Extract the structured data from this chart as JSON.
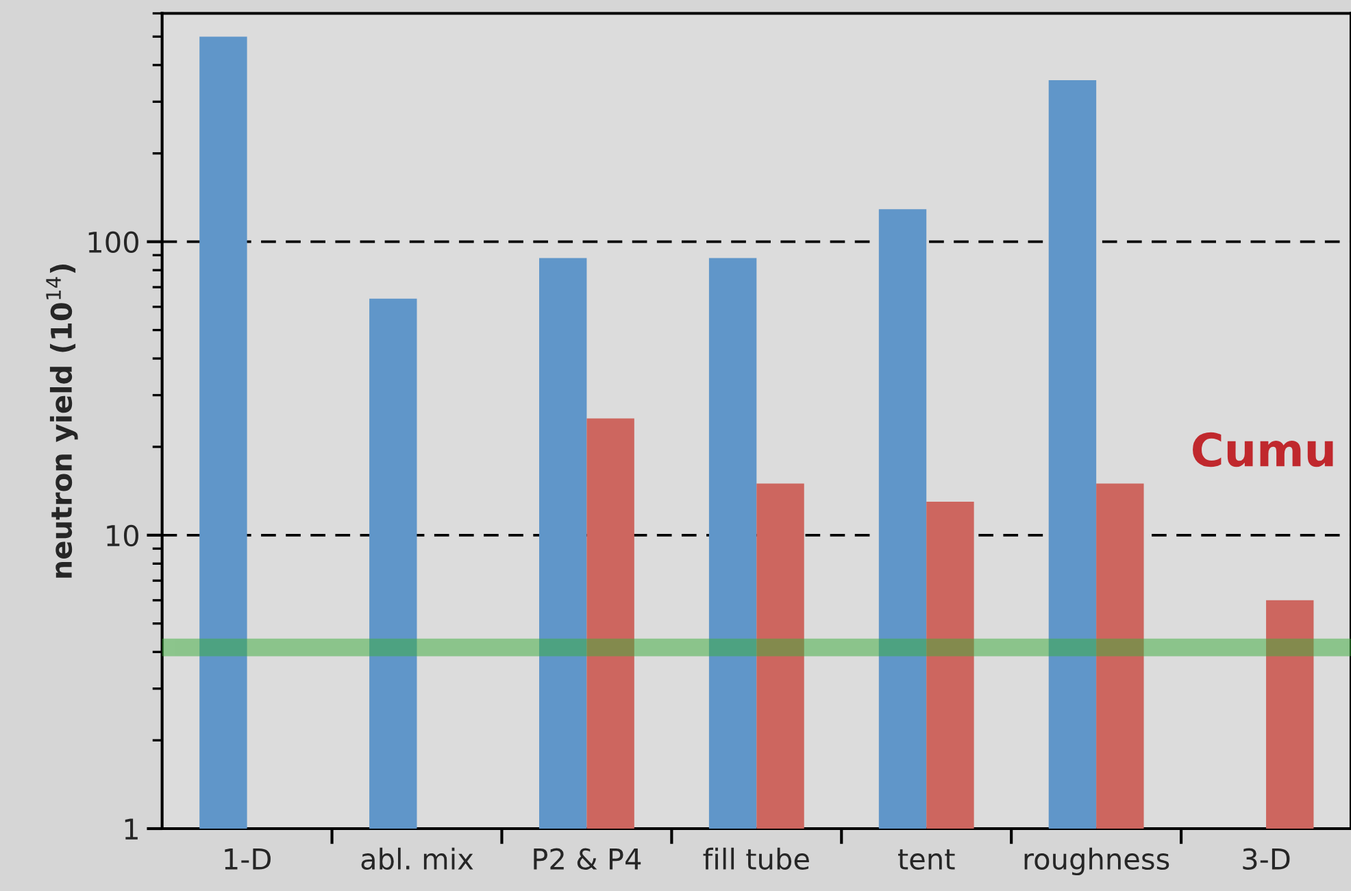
{
  "chart_data": {
    "type": "bar",
    "ylabel": "neutron yield (10$^{14}$)",
    "categories": [
      "1-D",
      "abl. mix",
      "P2 & P4",
      "fill tube",
      "tent",
      "roughness",
      "3-D"
    ],
    "series": [
      {
        "color": "#6096c9",
        "values": [
          500,
          64,
          88,
          88,
          129,
          355,
          null
        ]
      },
      {
        "color": "#cd665f",
        "values": [
          null,
          null,
          25,
          15,
          13,
          15,
          6
        ]
      }
    ],
    "log": true,
    "ylim": [
      1,
      600
    ],
    "yticks": [
      1,
      10,
      100
    ],
    "grid": "y",
    "line_style": "dashed",
    "bands": [
      {
        "axis": "y",
        "from": 3.9,
        "to": 4.4,
        "color": "#3cae3c"
      }
    ],
    "annotations": [
      "Cumu"
    ]
  }
}
